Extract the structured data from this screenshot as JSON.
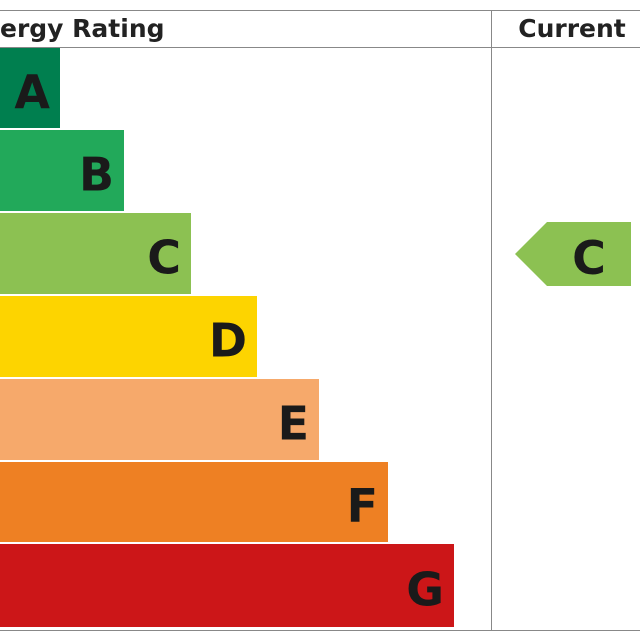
{
  "header": {
    "title": "ergy Rating",
    "current": "Current"
  },
  "bands": [
    {
      "label": "A",
      "color": "#007f4f"
    },
    {
      "label": "B",
      "color": "#22a95a"
    },
    {
      "label": "C",
      "color": "#8cc152"
    },
    {
      "label": "D",
      "color": "#fdd400"
    },
    {
      "label": "E",
      "color": "#f6a96b"
    },
    {
      "label": "F",
      "color": "#ee8023"
    },
    {
      "label": "G",
      "color": "#cc1618"
    }
  ],
  "current_rating": {
    "label": "C",
    "color": "#8cc152"
  }
}
